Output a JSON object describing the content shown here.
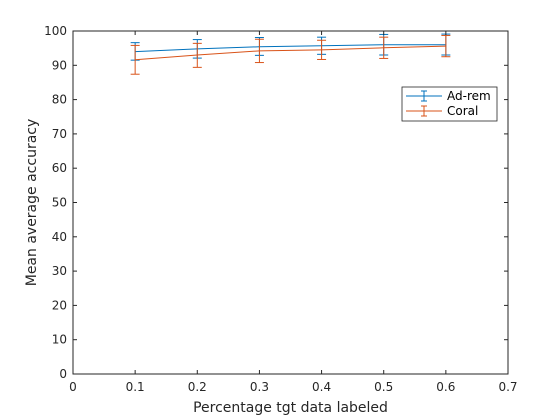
{
  "chart_data": {
    "type": "line",
    "xlabel": "Percentage tgt data labeled",
    "ylabel": "Mean average accuracy",
    "xlim": [
      0,
      0.7
    ],
    "ylim": [
      0,
      100
    ],
    "xticks": [
      "0",
      "0.1",
      "0.2",
      "0.3",
      "0.4",
      "0.5",
      "0.6",
      "0.7"
    ],
    "yticks": [
      "0",
      "10",
      "20",
      "30",
      "40",
      "50",
      "60",
      "70",
      "80",
      "90",
      "100"
    ],
    "grid": false,
    "legend_position": "upper-right",
    "x": [
      0.1,
      0.2,
      0.3,
      0.4,
      0.5,
      0.6
    ],
    "series": [
      {
        "name": "Ad-rem",
        "color": "#0072BD",
        "values": [
          94.0,
          94.8,
          95.4,
          95.7,
          96.0,
          96.0
        ],
        "err_low": [
          91.5,
          92.1,
          92.9,
          93.2,
          93.0,
          93.0
        ],
        "err_high": [
          96.6,
          97.5,
          98.1,
          98.2,
          99.0,
          99.1
        ]
      },
      {
        "name": "Coral",
        "color": "#D95319",
        "values": [
          91.6,
          93.0,
          94.2,
          94.5,
          95.1,
          95.6
        ],
        "err_low": [
          87.4,
          89.4,
          90.8,
          91.7,
          92.0,
          92.5
        ],
        "err_high": [
          95.8,
          96.4,
          97.6,
          97.3,
          98.2,
          98.7
        ]
      }
    ]
  }
}
